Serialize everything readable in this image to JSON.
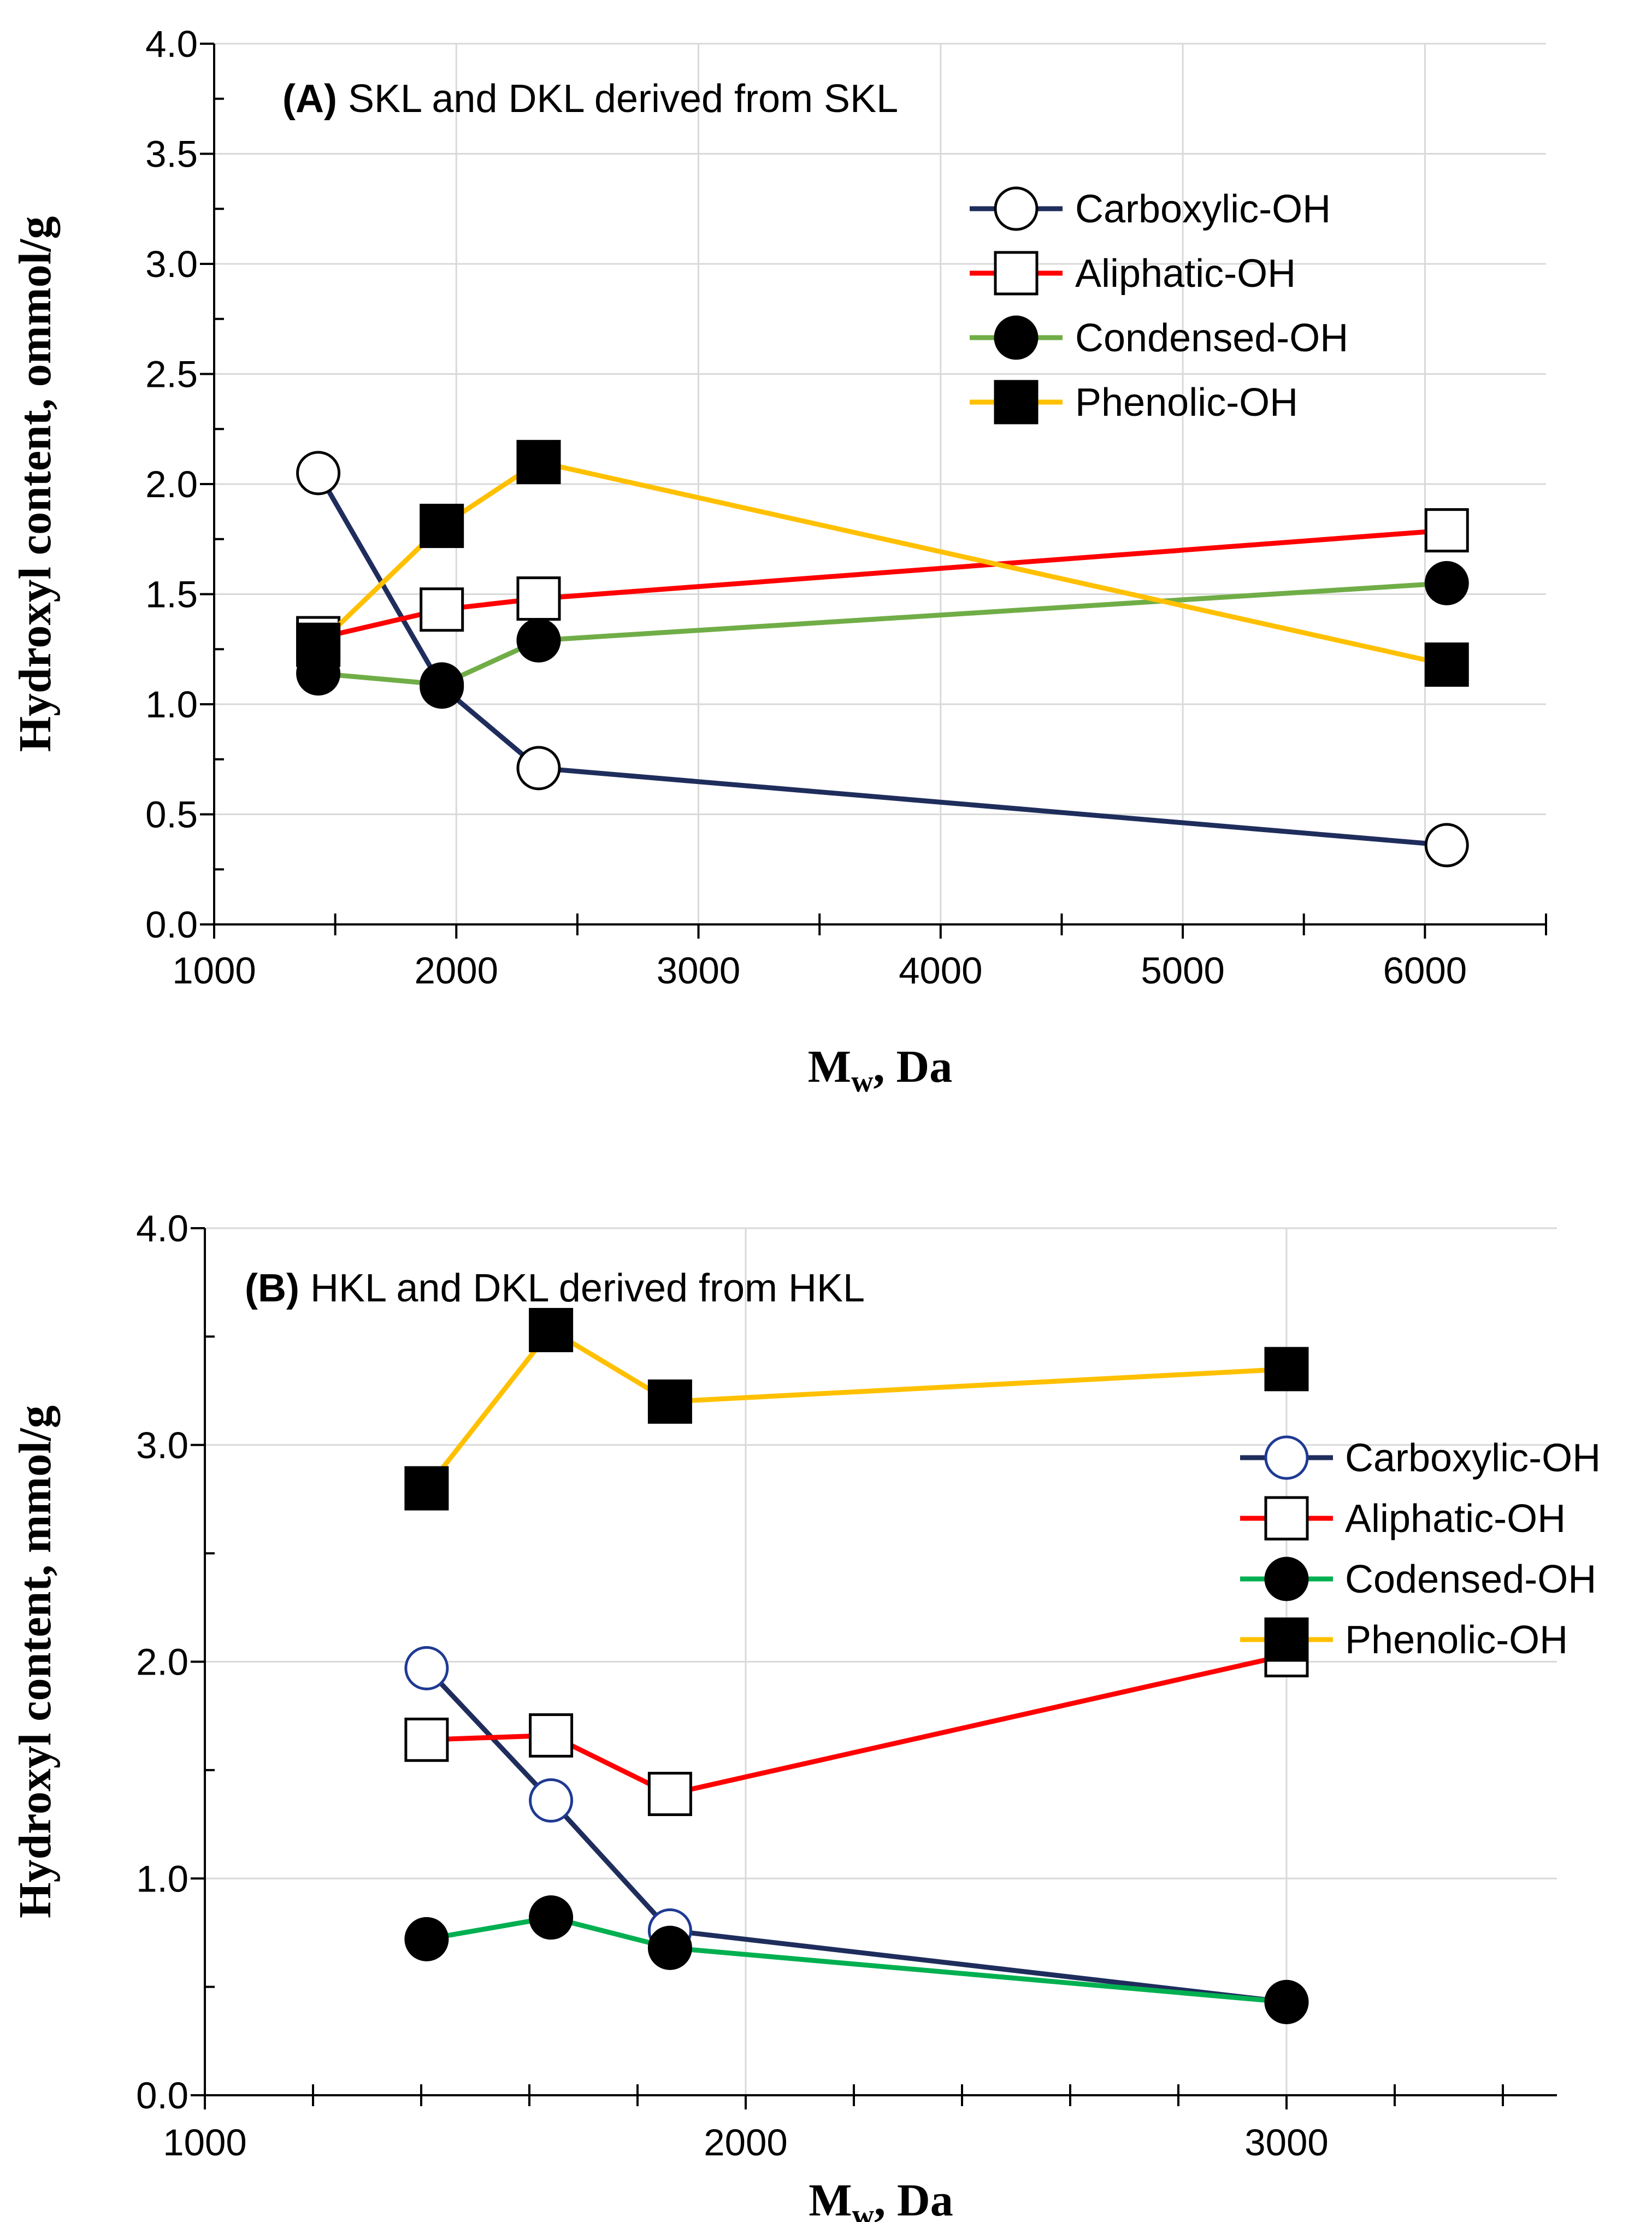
{
  "chart_data": [
    {
      "type": "line",
      "panel_id": "A",
      "title_letter": "(A)",
      "title_text": "SKL and DKL derived from SKL",
      "xlabel_main": "M",
      "xlabel_sub": "w",
      "xlabel_rest": ", Da",
      "ylabel": "Hydroxyl content, ommol/g",
      "xlim": [
        1000,
        6500
      ],
      "ylim": [
        0,
        4.0
      ],
      "xticks": [
        1000,
        2000,
        3000,
        4000,
        5000,
        6000
      ],
      "xtick_labels": [
        "1000",
        "2000",
        "3000",
        "4000",
        "5000",
        "6000"
      ],
      "xminor_step": 500,
      "yticks": [
        0,
        0.5,
        1.0,
        1.5,
        2.0,
        2.5,
        3.0,
        3.5,
        4.0
      ],
      "ytick_labels": [
        "0.0",
        "0.5",
        "1.0",
        "1.5",
        "2.0",
        "2.5",
        "3.0",
        "3.5",
        "4.0"
      ],
      "yminor_step": 0.25,
      "grid": true,
      "legend_position": "upper-right",
      "series": [
        {
          "name": "Carboxylic-OH",
          "color": "#1f2d5c",
          "marker": "circle",
          "filled": false,
          "x": [
            1430,
            1940,
            2340,
            6090
          ],
          "values": [
            2.05,
            1.08,
            0.71,
            0.36
          ]
        },
        {
          "name": "Aliphatic-OH",
          "color": "#ff0000",
          "marker": "square",
          "filled": false,
          "x": [
            1430,
            1940,
            2340,
            6090
          ],
          "values": [
            1.3,
            1.43,
            1.48,
            1.79
          ]
        },
        {
          "name": "Condensed-OH",
          "color": "#70ad47",
          "marker": "circle",
          "filled": true,
          "x": [
            1430,
            1940,
            2340,
            6090
          ],
          "values": [
            1.14,
            1.09,
            1.29,
            1.55
          ]
        },
        {
          "name": "Phenolic-OH",
          "color": "#ffc000",
          "marker": "square",
          "filled": true,
          "x": [
            1430,
            1940,
            2340,
            6090
          ],
          "values": [
            1.27,
            1.81,
            2.1,
            1.18
          ]
        }
      ]
    },
    {
      "type": "line",
      "panel_id": "B",
      "title_letter": "(B)",
      "title_text": "HKL and DKL derived from HKL",
      "xlabel_main": "M",
      "xlabel_sub": "w",
      "xlabel_rest": ", Da",
      "ylabel": "Hydroxyl content, mmol/g",
      "xlim": [
        1000,
        3500
      ],
      "ylim": [
        0,
        4.0
      ],
      "xticks": [
        1000,
        2000,
        3000
      ],
      "xtick_labels": [
        "1000",
        "2000",
        "3000"
      ],
      "xminor_step": 200,
      "yticks": [
        0,
        1.0,
        2.0,
        3.0,
        4.0
      ],
      "ytick_labels": [
        "0.0",
        "1.0",
        "2.0",
        "3.0",
        "4.0"
      ],
      "yminor_step": 0.5,
      "grid": true,
      "legend_position": "right",
      "series": [
        {
          "name": "Carboxylic-OH",
          "color": "#1f2d5c",
          "marker": "circle",
          "filled": false,
          "x": [
            1410,
            1640,
            1860,
            3000
          ],
          "values": [
            1.97,
            1.36,
            0.76,
            0.43
          ]
        },
        {
          "name": "Aliphatic-OH",
          "color": "#ff0000",
          "marker": "square",
          "filled": false,
          "x": [
            1410,
            1640,
            1860,
            3000
          ],
          "values": [
            1.64,
            1.66,
            1.39,
            2.03
          ]
        },
        {
          "name": "Codensed-OH",
          "color": "#00b050",
          "marker": "circle",
          "filled": true,
          "x": [
            1410,
            1640,
            1860,
            3000
          ],
          "values": [
            0.72,
            0.82,
            0.68,
            0.43
          ]
        },
        {
          "name": "Phenolic-OH",
          "color": "#ffc000",
          "marker": "square",
          "filled": true,
          "x": [
            1410,
            1640,
            1860,
            3000
          ],
          "values": [
            2.8,
            3.53,
            3.2,
            3.35
          ]
        }
      ]
    }
  ]
}
